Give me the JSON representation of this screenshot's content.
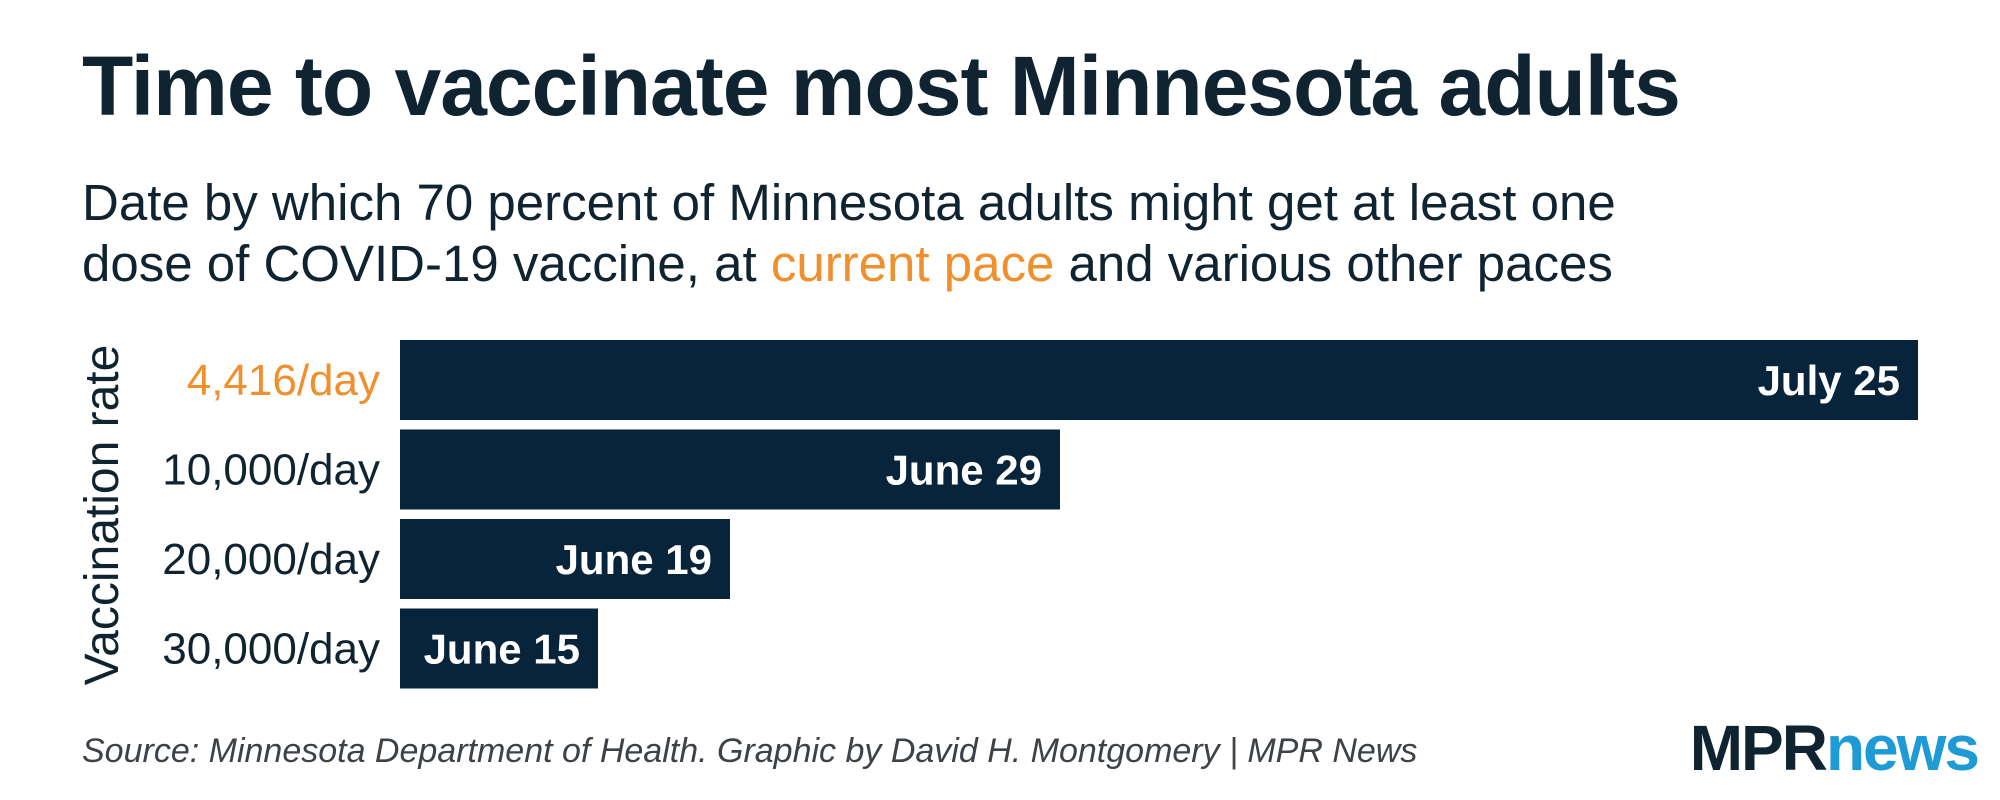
{
  "title": "Time to vaccinate most Minnesota adults",
  "subtitle": {
    "line1": "Date by which 70 percent of Minnesota adults might get at least one",
    "line2_before": "dose of COVID-19 vaccine, at ",
    "line2_highlight": "current pace",
    "line2_after": " and various other paces"
  },
  "source": "Source: Minnesota Department of Health. Graphic by David H. Montgomery | MPR News",
  "logo": {
    "mpr": "MPR",
    "news": "news"
  },
  "colors": {
    "bar": "#08243a",
    "highlight": "#f08f2c",
    "text": "#0f2430",
    "logo_news": "#1e9ad6"
  },
  "chart_data": {
    "type": "bar",
    "orientation": "horizontal",
    "title": "Time to vaccinate most Minnesota adults",
    "ylabel": "Vaccination rate",
    "xlabel": "",
    "value_unit": "date (2021)",
    "categories": [
      "4,416/day",
      "10,000/day",
      "20,000/day",
      "30,000/day"
    ],
    "values": [
      "2021-07-25",
      "2021-06-29",
      "2021-06-19",
      "2021-06-15"
    ],
    "data_labels": [
      "July 25",
      "June 29",
      "June 19",
      "June 15"
    ],
    "highlighted_category": "4,416/day",
    "grid": false,
    "legend": "none",
    "x_axis_visible": false
  }
}
